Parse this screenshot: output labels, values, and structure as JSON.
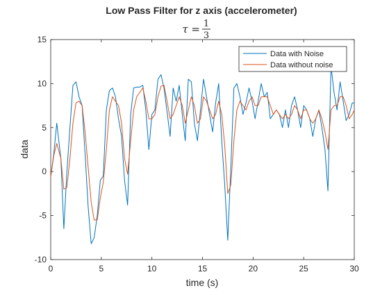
{
  "chart_data": {
    "type": "line",
    "title": "Low Pass Filter for z axis (accelerometer)",
    "subtitle": {
      "lhs": "τ =",
      "numerator": "1",
      "denominator": "3"
    },
    "xlabel": "time (s)",
    "ylabel": "data",
    "xlim": [
      0,
      30
    ],
    "ylim": [
      -10,
      15
    ],
    "xticks": [
      "0",
      "5",
      "10",
      "15",
      "20",
      "25",
      "30"
    ],
    "yticks": [
      "-10",
      "-5",
      "0",
      "5",
      "10",
      "15"
    ],
    "grid": false,
    "legend_position": "top-right",
    "x": [
      0,
      0.3,
      0.6,
      1.0,
      1.3,
      1.6,
      1.9,
      2.2,
      2.5,
      2.8,
      3.1,
      3.4,
      3.7,
      4.0,
      4.3,
      4.6,
      4.9,
      5.2,
      5.5,
      5.8,
      6.1,
      6.4,
      6.7,
      7.0,
      7.3,
      7.6,
      7.9,
      8.2,
      8.5,
      8.8,
      9.1,
      9.4,
      9.7,
      10.0,
      10.3,
      10.6,
      10.9,
      11.2,
      11.5,
      11.8,
      12.1,
      12.4,
      12.7,
      13.0,
      13.3,
      13.6,
      13.9,
      14.2,
      14.5,
      14.8,
      15.1,
      15.4,
      15.7,
      16.0,
      16.3,
      16.6,
      16.9,
      17.2,
      17.5,
      17.8,
      18.1,
      18.4,
      18.7,
      19.0,
      19.3,
      19.6,
      19.9,
      20.2,
      20.5,
      20.8,
      21.1,
      21.4,
      21.7,
      22.0,
      22.3,
      22.6,
      22.9,
      23.2,
      23.5,
      23.8,
      24.1,
      24.4,
      24.7,
      25.0,
      25.3,
      25.6,
      25.9,
      26.2,
      26.5,
      26.8,
      27.1,
      27.4,
      27.7,
      28.0,
      28.3,
      28.6,
      28.9,
      29.2,
      29.5,
      29.8,
      30.0
    ],
    "series": [
      {
        "name": "Data with Noise",
        "color": "#0072BD",
        "values": [
          -0.6,
          2.0,
          5.5,
          1.5,
          -6.5,
          0.0,
          5.0,
          9.8,
          10.2,
          8.5,
          7.5,
          2.0,
          -4.0,
          -8.2,
          -7.5,
          -5.0,
          -1.0,
          -0.5,
          7.0,
          9.2,
          9.5,
          8.5,
          6.0,
          4.0,
          -1.0,
          -3.8,
          6.5,
          9.5,
          9.6,
          9.6,
          9.8,
          7.0,
          2.5,
          6.5,
          7.0,
          10.5,
          11.0,
          9.5,
          6.8,
          4.0,
          9.5,
          8.0,
          9.8,
          6.5,
          3.5,
          10.5,
          10.2,
          5.5,
          3.5,
          7.0,
          10.5,
          8.5,
          6.5,
          4.5,
          7.8,
          10.0,
          3.5,
          -1.5,
          -7.8,
          0.5,
          9.5,
          10.0,
          8.5,
          6.5,
          7.8,
          9.5,
          8.0,
          6.0,
          8.0,
          10.0,
          8.5,
          9.0,
          6.0,
          6.5,
          7.0,
          6.5,
          5.0,
          7.0,
          5.0,
          7.5,
          8.5,
          7.0,
          5.0,
          7.5,
          7.0,
          6.0,
          4.0,
          6.0,
          7.0,
          5.0,
          2.5,
          -2.2,
          12.0,
          9.0,
          7.0,
          10.2,
          8.0,
          5.8,
          6.5,
          7.8,
          7.8
        ]
      },
      {
        "name": "Data without noise",
        "color": "#D95319",
        "values": [
          -0.6,
          1.8,
          3.2,
          1.5,
          -2.0,
          -1.8,
          1.5,
          5.5,
          7.8,
          8.0,
          7.5,
          4.5,
          0.5,
          -3.5,
          -5.5,
          -5.5,
          -3.0,
          -1.2,
          2.5,
          7.0,
          8.5,
          8.0,
          7.5,
          5.5,
          1.5,
          -0.3,
          3.5,
          7.0,
          8.5,
          9.0,
          9.5,
          8.0,
          6.0,
          6.0,
          6.5,
          8.5,
          9.7,
          9.8,
          8.0,
          6.0,
          6.5,
          7.5,
          8.5,
          7.5,
          5.5,
          7.0,
          8.5,
          7.5,
          5.5,
          6.0,
          8.5,
          8.0,
          7.0,
          6.0,
          6.5,
          8.0,
          6.5,
          3.0,
          -2.5,
          -1.5,
          3.5,
          7.0,
          8.0,
          7.5,
          7.0,
          8.0,
          8.5,
          7.5,
          7.5,
          8.5,
          8.5,
          8.5,
          7.5,
          6.5,
          7.0,
          6.5,
          6.0,
          6.5,
          6.0,
          6.5,
          7.5,
          7.0,
          6.0,
          7.0,
          7.0,
          6.0,
          5.5,
          6.0,
          7.0,
          6.0,
          4.5,
          2.5,
          7.0,
          7.5,
          7.5,
          8.5,
          8.5,
          7.5,
          6.0,
          6.5,
          7.0
        ]
      }
    ]
  }
}
